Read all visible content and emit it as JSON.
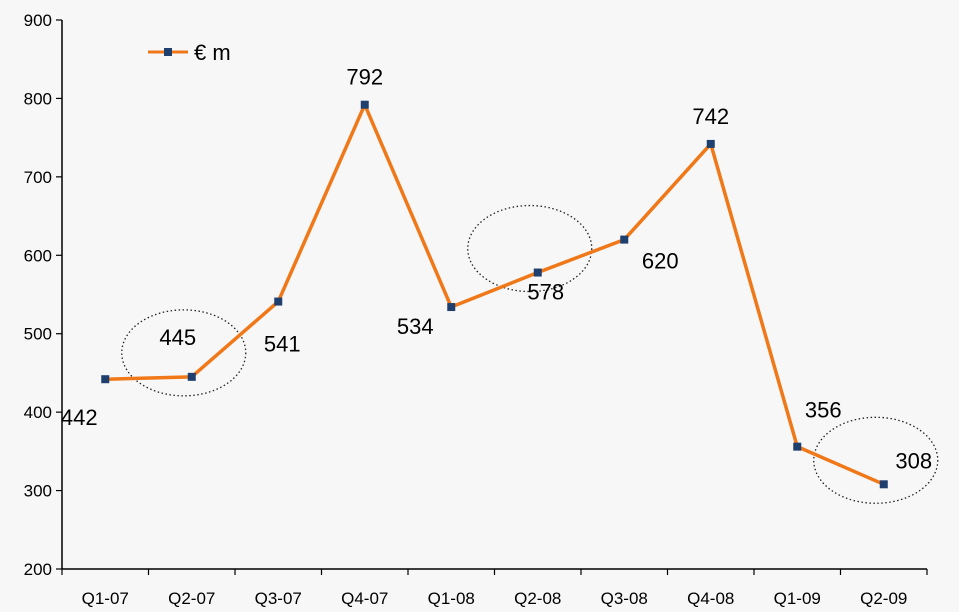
{
  "chart_data": {
    "type": "line",
    "categories": [
      "Q1-07",
      "Q2-07",
      "Q3-07",
      "Q4-07",
      "Q1-08",
      "Q2-08",
      "Q3-08",
      "Q4-08",
      "Q1-09",
      "Q2-09"
    ],
    "series": [
      {
        "name": "€ m",
        "values": [
          442,
          445,
          541,
          792,
          534,
          578,
          620,
          742,
          356,
          308
        ],
        "color": "#f07818",
        "marker_color": "#1f3f6e"
      }
    ],
    "ylim": [
      200,
      900
    ],
    "yticks": [
      200,
      300,
      400,
      500,
      600,
      700,
      800,
      900
    ],
    "grid": false,
    "legend": "top-left",
    "highlighted_categories": [
      "Q2-07",
      "Q2-08",
      "Q2-09"
    ]
  }
}
